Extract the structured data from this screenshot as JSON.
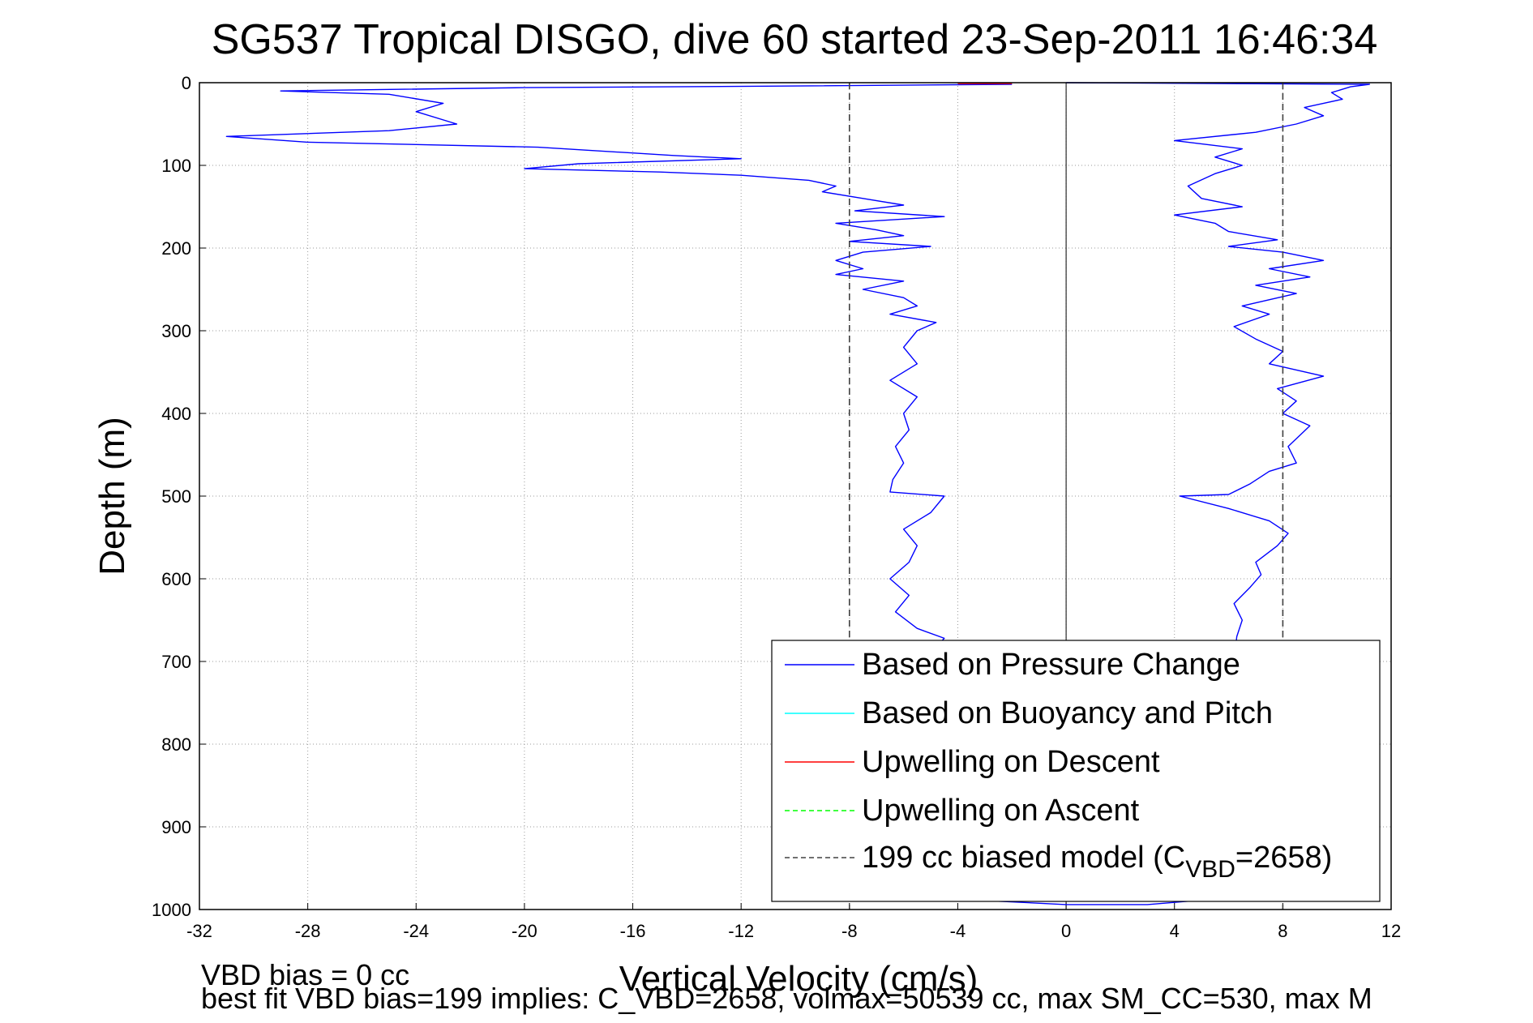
{
  "chart_data": {
    "type": "line",
    "title": "SG537 Tropical DISGO, dive 60 started 23-Sep-2011 16:46:34",
    "xlabel": "Vertical Velocity (cm/s)",
    "ylabel": "Depth (m)",
    "xlim": [
      -32,
      12
    ],
    "ylim": [
      0,
      1000
    ],
    "y_reversed": true,
    "grid": true,
    "xticks": [
      -32,
      -28,
      -24,
      -20,
      -16,
      -12,
      -8,
      -4,
      0,
      4,
      8,
      12
    ],
    "yticks": [
      0,
      100,
      200,
      300,
      400,
      500,
      600,
      700,
      800,
      900,
      1000
    ],
    "legend_position": "bottom-right",
    "legend": [
      {
        "label": "Based on Pressure Change",
        "color": "#0000ff",
        "style": "solid"
      },
      {
        "label": "Based on Buoyancy and Pitch",
        "color": "#00ffff",
        "style": "solid"
      },
      {
        "label": "Upwelling on Descent",
        "color": "#ff0000",
        "style": "solid"
      },
      {
        "label": "Upwelling on Ascent",
        "color": "#00ff00",
        "style": "dashed"
      },
      {
        "label_prefix": "199 cc biased model (C",
        "label_sub": "VBD",
        "label_suffix": "=2658)",
        "color": "#404040",
        "style": "dashed"
      }
    ],
    "series": [
      {
        "name": "Based on Pressure Change",
        "segment": "descent",
        "color": "#0000ff",
        "points": [
          [
            -2.0,
            2
          ],
          [
            -10.0,
            4
          ],
          [
            -20.0,
            6
          ],
          [
            -29.0,
            10
          ],
          [
            -25.0,
            14
          ],
          [
            -23.0,
            25
          ],
          [
            -24.0,
            35
          ],
          [
            -22.5,
            50
          ],
          [
            -25.0,
            58
          ],
          [
            -31.0,
            65
          ],
          [
            -28.0,
            72
          ],
          [
            -19.5,
            78
          ],
          [
            -14.5,
            88
          ],
          [
            -12.0,
            92
          ],
          [
            -18.0,
            98
          ],
          [
            -20.0,
            104
          ],
          [
            -15.0,
            108
          ],
          [
            -12.0,
            112
          ],
          [
            -9.5,
            118
          ],
          [
            -8.5,
            125
          ],
          [
            -9.0,
            132
          ],
          [
            -7.5,
            140
          ],
          [
            -6.0,
            148
          ],
          [
            -7.8,
            155
          ],
          [
            -4.5,
            162
          ],
          [
            -8.5,
            170
          ],
          [
            -7.0,
            178
          ],
          [
            -6.0,
            185
          ],
          [
            -8.0,
            192
          ],
          [
            -5.0,
            198
          ],
          [
            -7.5,
            205
          ],
          [
            -8.5,
            215
          ],
          [
            -7.5,
            225
          ],
          [
            -8.5,
            232
          ],
          [
            -6.0,
            240
          ],
          [
            -7.5,
            250
          ],
          [
            -6.0,
            260
          ],
          [
            -5.5,
            270
          ],
          [
            -6.5,
            280
          ],
          [
            -4.8,
            290
          ],
          [
            -5.5,
            300
          ],
          [
            -6.0,
            320
          ],
          [
            -5.5,
            340
          ],
          [
            -6.5,
            360
          ],
          [
            -5.5,
            380
          ],
          [
            -6.0,
            400
          ],
          [
            -5.8,
            420
          ],
          [
            -6.3,
            440
          ],
          [
            -6.0,
            460
          ],
          [
            -6.4,
            480
          ],
          [
            -6.5,
            495
          ],
          [
            -4.5,
            500
          ],
          [
            -5.0,
            520
          ],
          [
            -6.0,
            540
          ],
          [
            -5.5,
            560
          ],
          [
            -5.8,
            580
          ],
          [
            -6.5,
            600
          ],
          [
            -5.8,
            620
          ],
          [
            -6.3,
            640
          ],
          [
            -5.5,
            660
          ],
          [
            -4.5,
            672
          ],
          [
            -5.0,
            690
          ],
          [
            -4.8,
            720
          ],
          [
            -4.5,
            780
          ],
          [
            -4.2,
            850
          ],
          [
            -3.8,
            920
          ],
          [
            -3.5,
            970
          ],
          [
            -2.5,
            990
          ],
          [
            0.0,
            994
          ],
          [
            3.0,
            994
          ],
          [
            4.5,
            990
          ]
        ]
      },
      {
        "name": "Based on Pressure Change",
        "segment": "ascent",
        "color": "#0000ff",
        "points": [
          [
            4.6,
            990
          ],
          [
            5.0,
            960
          ],
          [
            5.3,
            900
          ],
          [
            5.5,
            850
          ],
          [
            5.8,
            800
          ],
          [
            6.0,
            750
          ],
          [
            6.2,
            700
          ],
          [
            6.3,
            670
          ],
          [
            6.5,
            650
          ],
          [
            6.2,
            630
          ],
          [
            6.8,
            610
          ],
          [
            7.2,
            595
          ],
          [
            7.0,
            580
          ],
          [
            7.8,
            560
          ],
          [
            8.2,
            545
          ],
          [
            7.5,
            530
          ],
          [
            6.0,
            515
          ],
          [
            4.2,
            500
          ],
          [
            6.0,
            498
          ],
          [
            6.8,
            485
          ],
          [
            7.5,
            470
          ],
          [
            8.5,
            460
          ],
          [
            8.2,
            440
          ],
          [
            9.0,
            415
          ],
          [
            8.0,
            400
          ],
          [
            8.5,
            385
          ],
          [
            7.8,
            370
          ],
          [
            9.5,
            355
          ],
          [
            7.5,
            340
          ],
          [
            8.0,
            325
          ],
          [
            7.0,
            310
          ],
          [
            6.2,
            295
          ],
          [
            7.5,
            280
          ],
          [
            6.5,
            270
          ],
          [
            8.5,
            255
          ],
          [
            7.0,
            245
          ],
          [
            9.0,
            235
          ],
          [
            7.5,
            225
          ],
          [
            9.5,
            215
          ],
          [
            8.0,
            205
          ],
          [
            6.0,
            198
          ],
          [
            7.8,
            190
          ],
          [
            6.0,
            180
          ],
          [
            5.5,
            170
          ],
          [
            4.0,
            160
          ],
          [
            6.5,
            150
          ],
          [
            5.0,
            140
          ],
          [
            4.5,
            125
          ],
          [
            5.5,
            110
          ],
          [
            6.5,
            100
          ],
          [
            5.5,
            90
          ],
          [
            6.5,
            80
          ],
          [
            4.0,
            70
          ],
          [
            7.0,
            60
          ],
          [
            8.5,
            50
          ],
          [
            9.5,
            40
          ],
          [
            8.8,
            30
          ],
          [
            10.2,
            20
          ],
          [
            9.8,
            12
          ],
          [
            10.5,
            5
          ],
          [
            11.2,
            2
          ],
          [
            0.0,
            0
          ]
        ]
      },
      {
        "name": "Upwelling on Descent",
        "color": "#ff0000",
        "points": [
          [
            -4.0,
            1
          ],
          [
            -2.0,
            1
          ]
        ]
      },
      {
        "name": "199 cc biased model",
        "color": "#404040",
        "style": "dashed",
        "points": [
          [
            -8,
            0
          ],
          [
            -8,
            1000
          ]
        ]
      },
      {
        "name": "199 cc biased model",
        "color": "#404040",
        "style": "dashed",
        "points": [
          [
            8,
            0
          ],
          [
            8,
            1000
          ]
        ]
      }
    ],
    "footer_lines": [
      "VBD bias = 0 cc",
      "best fit VBD bias=199 implies: C_VBD=2658, volmax=50539 cc, max SM_CC=530, max M"
    ]
  }
}
